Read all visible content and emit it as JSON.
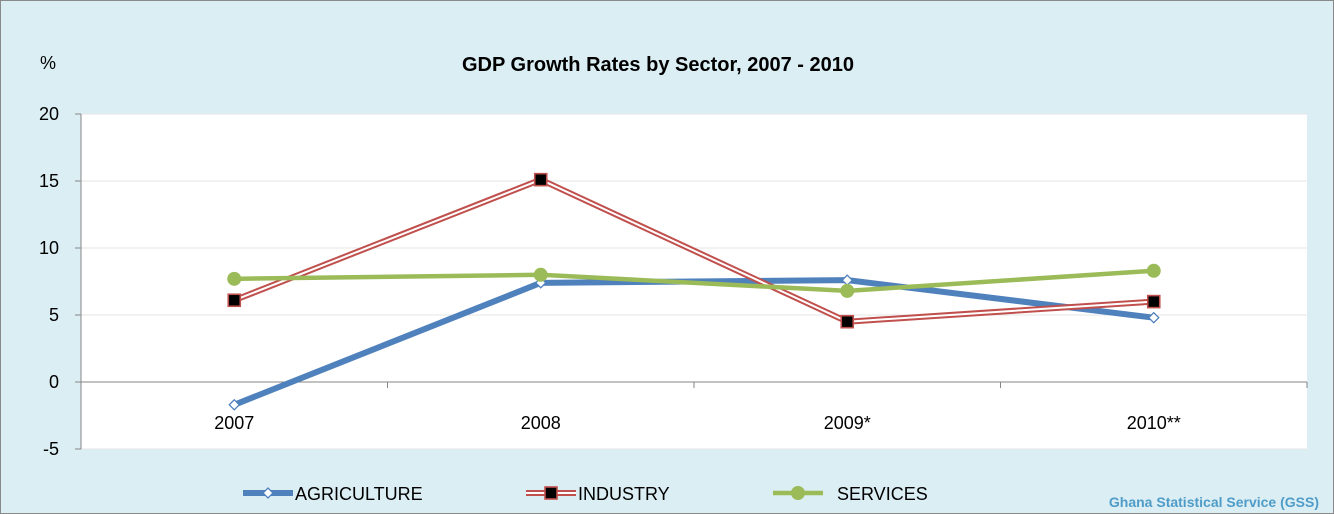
{
  "chart_data": {
    "type": "line",
    "title": "GDP Growth Rates by Sector, 2007 - 2010",
    "ylabel": "%",
    "xlabel": "",
    "categories": [
      "2007",
      "2008",
      "2009*",
      "2010**"
    ],
    "ylim": [
      -5,
      20
    ],
    "yticks": [
      -5,
      0,
      5,
      10,
      15,
      20
    ],
    "grid": true,
    "legend_position": "bottom",
    "series": [
      {
        "name": "AGRICULTURE",
        "values": [
          -1.7,
          7.4,
          7.6,
          4.8
        ],
        "color": "#4f81bd",
        "marker": "diamond-hollow"
      },
      {
        "name": "INDUSTRY",
        "values": [
          6.1,
          15.1,
          4.5,
          6.0
        ],
        "color": "#c0504d",
        "marker": "square-black"
      },
      {
        "name": "SERVICES",
        "values": [
          7.7,
          8.0,
          6.8,
          8.3
        ],
        "color": "#9bbb59",
        "marker": "circle"
      }
    ],
    "source": "Ghana Statistical Service (GSS)"
  }
}
